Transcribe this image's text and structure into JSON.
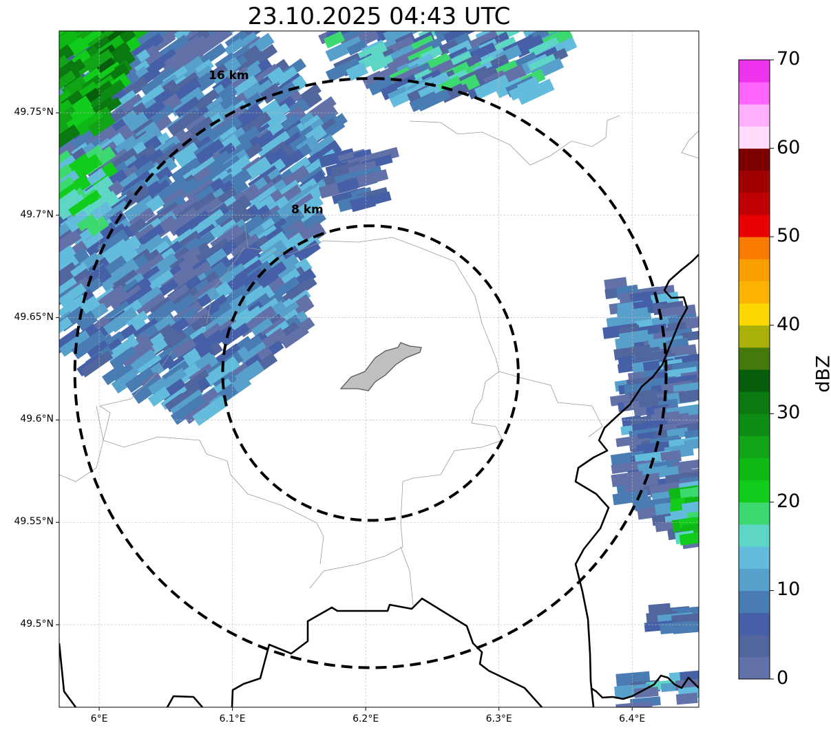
{
  "chart_data": {
    "type": "heatmap",
    "subtype": "radar-reflectivity-map",
    "title": "23.10.2025 04:43 UTC",
    "xlim": [
      5.97,
      6.45
    ],
    "ylim": [
      49.4597,
      49.79
    ],
    "grid": true,
    "x_ticks": [
      {
        "value": 6.0,
        "label": "6°E"
      },
      {
        "value": 6.1,
        "label": "6.1°E"
      },
      {
        "value": 6.2,
        "label": "6.2°E"
      },
      {
        "value": 6.3,
        "label": "6.3°E"
      },
      {
        "value": 6.4,
        "label": "6.4°E"
      }
    ],
    "y_ticks": [
      {
        "value": 49.75,
        "label": "49.75°N"
      },
      {
        "value": 49.7,
        "label": "49.7°N"
      },
      {
        "value": 49.65,
        "label": "49.65°N"
      },
      {
        "value": 49.6,
        "label": "49.6°N"
      },
      {
        "value": 49.55,
        "label": "49.55°N"
      },
      {
        "value": 49.5,
        "label": "49.5°N"
      }
    ],
    "range_rings": {
      "center": [
        6.2036,
        49.6229
      ],
      "rings": [
        {
          "radius_km": 8,
          "label": "8 km"
        },
        {
          "radius_km": 16,
          "label": "16 km"
        }
      ]
    },
    "colorbar": {
      "label": "dBZ",
      "min": 0,
      "max": 70,
      "step": 2.5,
      "ticks": [
        "0",
        "10",
        "20",
        "30",
        "40",
        "50",
        "60",
        "70"
      ],
      "colors": [
        "#6272a8",
        "#52669e",
        "#4560a6",
        "#4a7cb4",
        "#58a0cc",
        "#64bcdc",
        "#5ed6c6",
        "#3cd870",
        "#12cc1c",
        "#10b816",
        "#10a416",
        "#0c8c14",
        "#0a7a10",
        "#065e0c",
        "#447a0c",
        "#aab00a",
        "#fcd800",
        "#fcb400",
        "#fca000",
        "#fc7c00",
        "#e80000",
        "#c00000",
        "#a00000",
        "#7c0000",
        "#ffdcfc",
        "#ffb0fc",
        "#ff66fc",
        "#ee33ee"
      ]
    },
    "echo_regions": [
      {
        "name": "northwest-band",
        "dbz": [
          0,
          15
        ],
        "angle": -35,
        "density": 0.8,
        "poly": [
          [
            5.97,
            49.79
          ],
          [
            6.1116,
            49.79
          ],
          [
            6.184,
            49.7447
          ],
          [
            6.1633,
            49.6977
          ],
          [
            6.153,
            49.644
          ],
          [
            6.0806,
            49.6004
          ],
          [
            5.97,
            49.634
          ]
        ]
      },
      {
        "name": "northwest-core",
        "dbz": [
          20,
          35
        ],
        "angle": -35,
        "density": 0.9,
        "poly": [
          [
            5.97,
            49.79
          ],
          [
            6.03,
            49.79
          ],
          [
            6.005,
            49.745
          ],
          [
            5.97,
            49.735
          ]
        ]
      },
      {
        "name": "west-teal",
        "dbz": [
          13,
          21
        ],
        "angle": -35,
        "density": 0.7,
        "poly": [
          [
            5.97,
            49.728
          ],
          [
            6.005,
            49.728
          ],
          [
            6.005,
            49.694
          ],
          [
            5.97,
            49.69
          ]
        ]
      },
      {
        "name": "north-strip",
        "dbz": [
          0,
          20
        ],
        "angle": -25,
        "density": 0.7,
        "poly": [
          [
            6.1736,
            49.79
          ],
          [
            6.3545,
            49.79
          ],
          [
            6.33,
            49.758
          ],
          [
            6.23,
            49.755
          ],
          [
            6.18,
            49.772
          ]
        ]
      },
      {
        "name": "north-small",
        "dbz": [
          0,
          8
        ],
        "angle": -15,
        "density": 0.8,
        "poly": [
          [
            6.176,
            49.7296
          ],
          [
            6.215,
            49.7296
          ],
          [
            6.205,
            49.704
          ],
          [
            6.18,
            49.706
          ]
        ]
      },
      {
        "name": "east-band",
        "dbz": [
          0,
          13
        ],
        "angle": -8,
        "density": 0.8,
        "poly": [
          [
            6.3777,
            49.6675
          ],
          [
            6.421,
            49.664
          ],
          [
            6.45,
            49.644
          ],
          [
            6.45,
            49.537
          ],
          [
            6.4265,
            49.547
          ],
          [
            6.397,
            49.561
          ],
          [
            6.392,
            49.638
          ]
        ]
      },
      {
        "name": "east-core",
        "dbz": [
          13,
          24
        ],
        "angle": -8,
        "density": 0.9,
        "poly": [
          [
            6.435,
            49.565
          ],
          [
            6.45,
            49.565
          ],
          [
            6.45,
            49.54
          ],
          [
            6.438,
            49.543
          ]
        ]
      },
      {
        "name": "southeast-1",
        "dbz": [
          2,
          12
        ],
        "angle": -5,
        "density": 0.9,
        "poly": [
          [
            6.4205,
            49.508
          ],
          [
            6.45,
            49.508
          ],
          [
            6.45,
            49.497
          ],
          [
            6.4205,
            49.499
          ]
        ]
      },
      {
        "name": "southeast-2",
        "dbz": [
          0,
          16
        ],
        "angle": -5,
        "density": 0.6,
        "poly": [
          [
            6.4,
            49.475
          ],
          [
            6.45,
            49.475
          ],
          [
            6.45,
            49.4597
          ],
          [
            6.4,
            49.4597
          ]
        ]
      }
    ]
  }
}
